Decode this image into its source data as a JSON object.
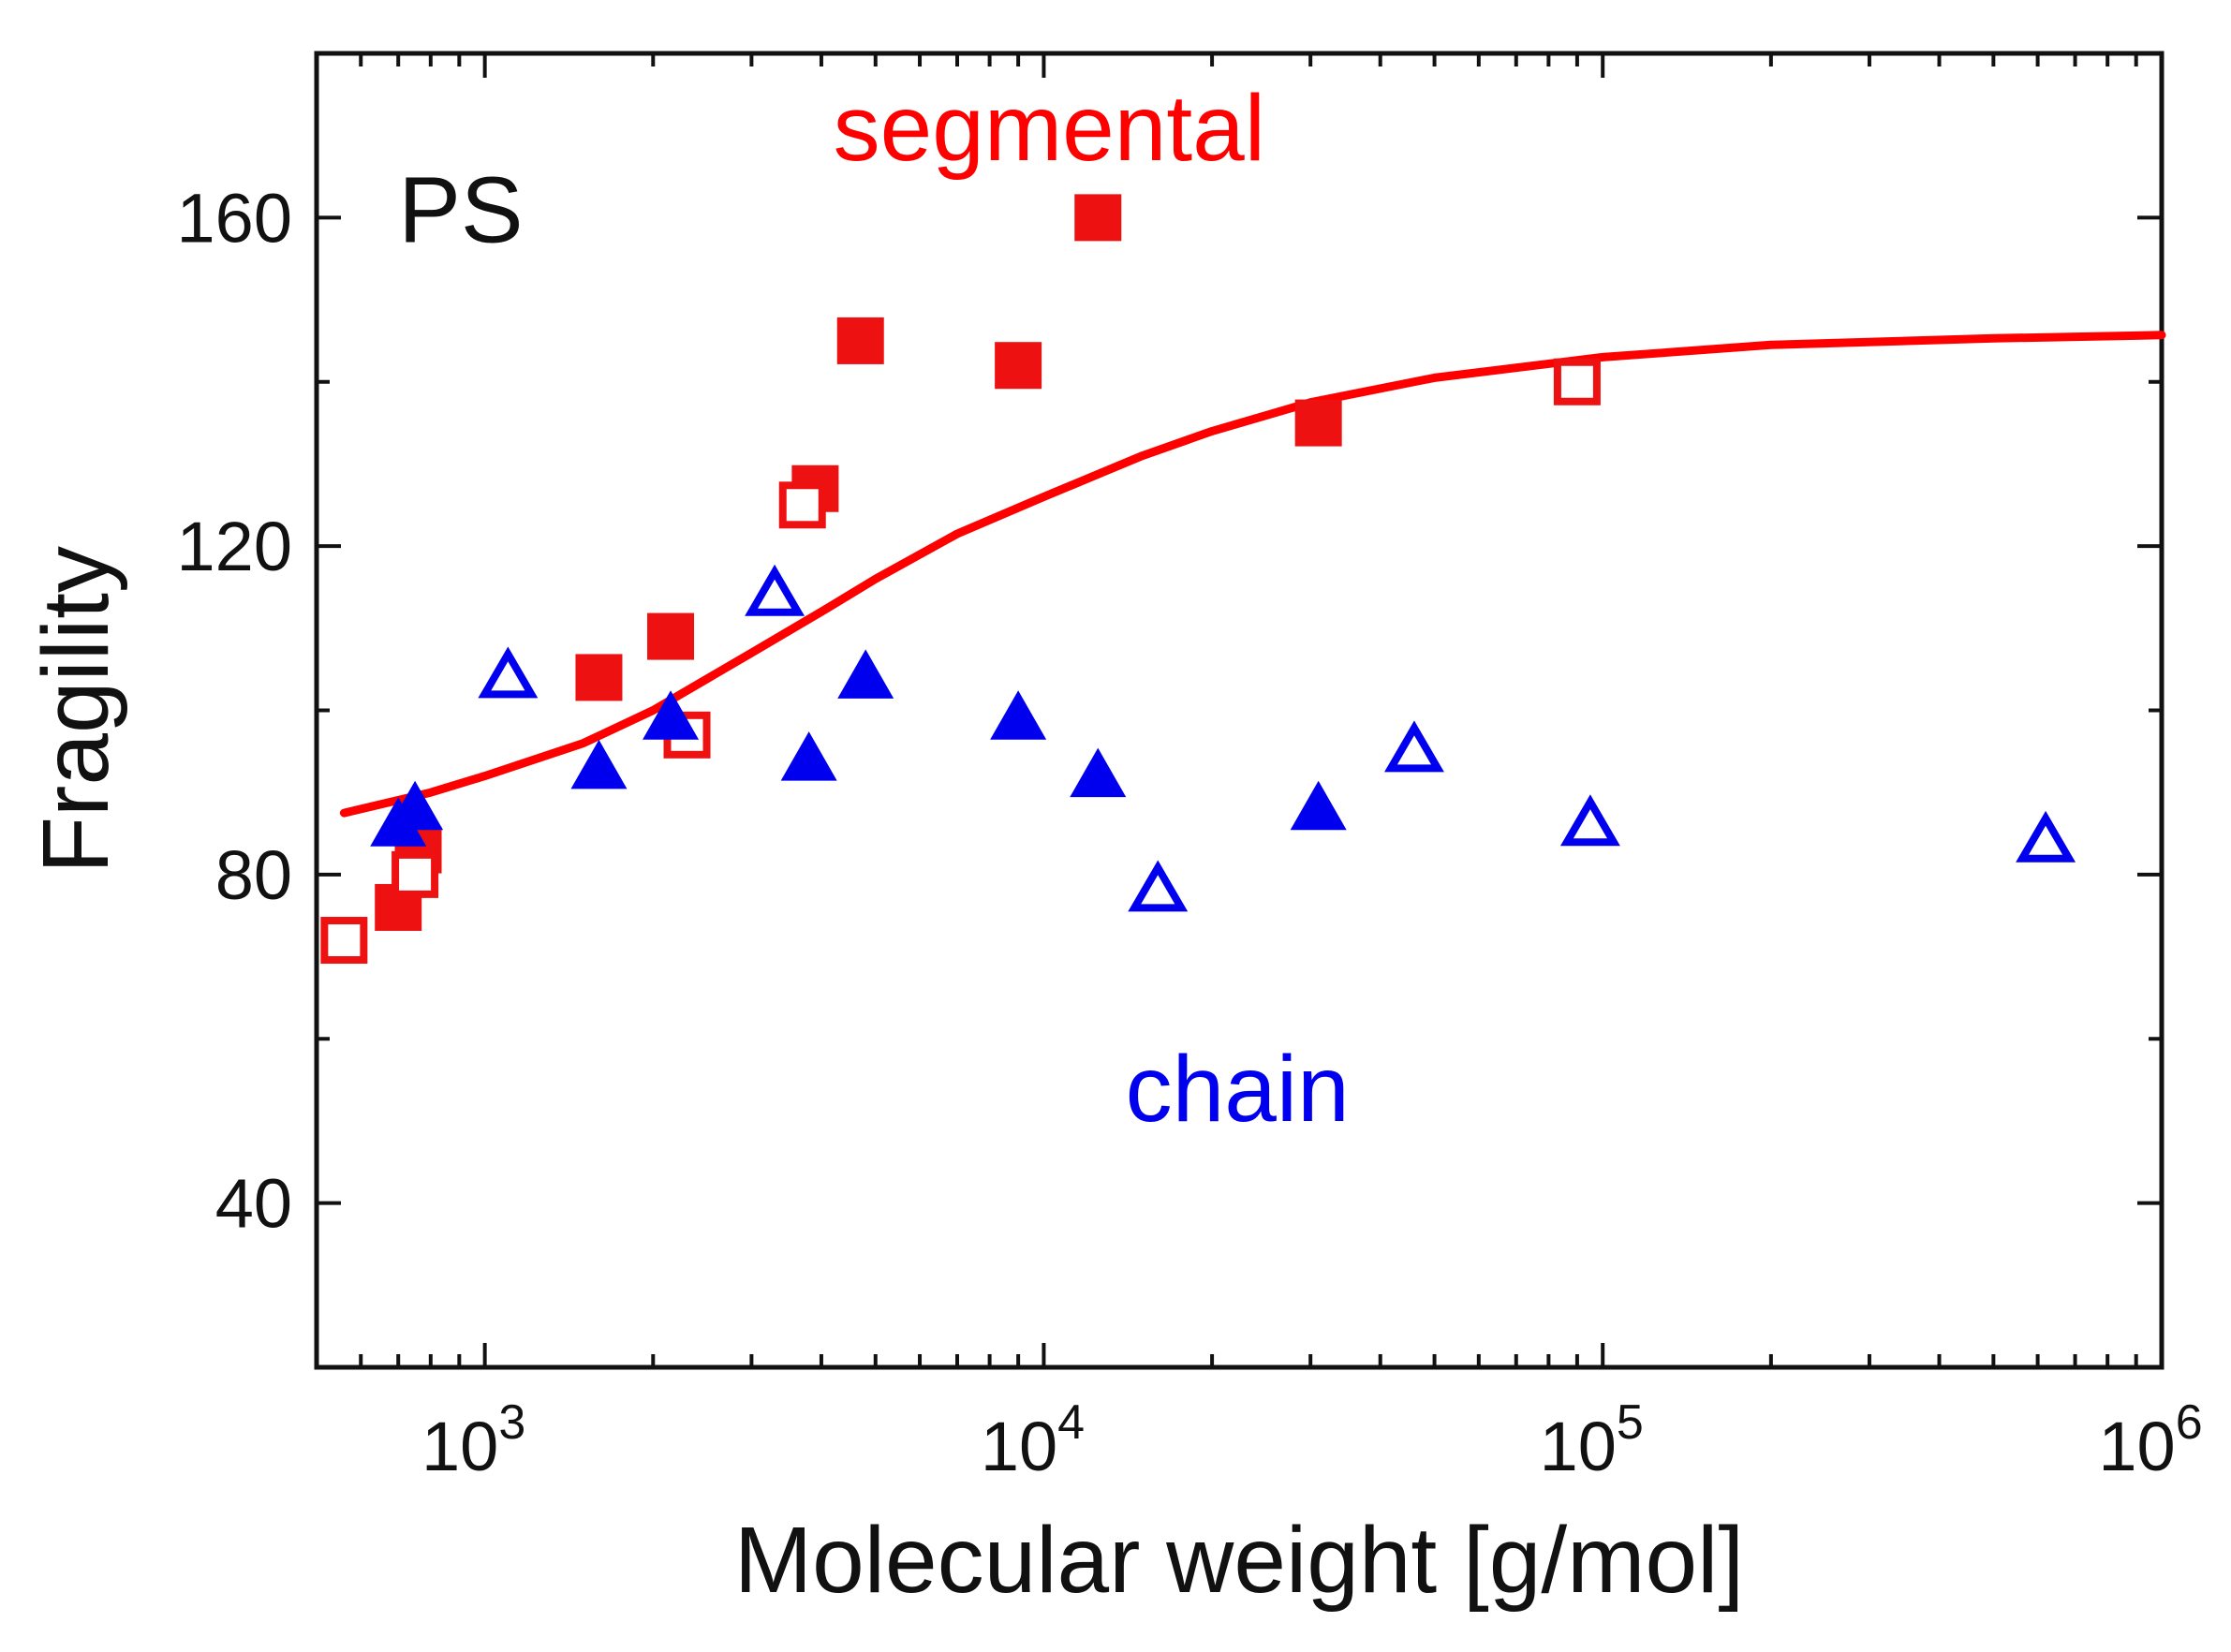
{
  "chart_data": {
    "type": "scatter",
    "title": "",
    "xlabel": "Molecular weight [g/mol]",
    "ylabel": "Fragility",
    "xscale": "log",
    "xlim": [
      500,
      1000000
    ],
    "ylim": [
      20,
      180
    ],
    "xticks": [
      {
        "value": 1000,
        "base": "10",
        "exp": "3"
      },
      {
        "value": 10000,
        "base": "10",
        "exp": "4"
      },
      {
        "value": 100000,
        "base": "10",
        "exp": "5"
      },
      {
        "value": 1000000,
        "base": "10",
        "exp": "6"
      }
    ],
    "yticks": [
      40,
      80,
      120,
      160
    ],
    "yminor": [
      60,
      100,
      140
    ],
    "grid": false,
    "annotations": [
      {
        "text": "PS",
        "x": 700,
        "y": 157,
        "color": "#111111"
      },
      {
        "text": "segmental",
        "x": 4200,
        "y": 167,
        "color": "#ff0000"
      },
      {
        "text": "chain",
        "x": 14000,
        "y": 50,
        "color": "#0000ee"
      }
    ],
    "series": [
      {
        "name": "segmental (filled)",
        "marker": "square",
        "filled": true,
        "color": "#ee1111",
        "points": [
          [
            700,
            76
          ],
          [
            760,
            83
          ],
          [
            1600,
            104
          ],
          [
            2150,
            109
          ],
          [
            3900,
            127
          ],
          [
            4700,
            145
          ],
          [
            9000,
            142
          ],
          [
            12500,
            160
          ],
          [
            31000,
            135
          ]
        ]
      },
      {
        "name": "segmental (open)",
        "marker": "square",
        "filled": false,
        "color": "#ee1111",
        "points": [
          [
            560,
            72
          ],
          [
            750,
            80
          ],
          [
            2300,
            97
          ],
          [
            3700,
            125
          ],
          [
            90000,
            140
          ]
        ]
      },
      {
        "name": "chain (filled)",
        "marker": "triangle",
        "filled": true,
        "color": "#0000ee",
        "points": [
          [
            700,
            86
          ],
          [
            750,
            88
          ],
          [
            1600,
            93
          ],
          [
            2150,
            99
          ],
          [
            3800,
            94
          ],
          [
            4800,
            104
          ],
          [
            9000,
            99
          ],
          [
            12500,
            92
          ],
          [
            31000,
            88
          ]
        ]
      },
      {
        "name": "chain (open)",
        "marker": "triangle",
        "filled": false,
        "color": "#0000ee",
        "points": [
          [
            1100,
            104
          ],
          [
            3300,
            114
          ],
          [
            16000,
            78
          ],
          [
            46000,
            95
          ],
          [
            95000,
            86
          ],
          [
            620000,
            84
          ]
        ]
      },
      {
        "name": "fit",
        "type": "line",
        "color": "#ff0000",
        "points": [
          [
            560,
            87.5
          ],
          [
            800,
            90
          ],
          [
            1000,
            92
          ],
          [
            1500,
            96
          ],
          [
            2000,
            100
          ],
          [
            3000,
            107
          ],
          [
            4000,
            112
          ],
          [
            5000,
            116
          ],
          [
            7000,
            121.5
          ],
          [
            10000,
            126
          ],
          [
            15000,
            131
          ],
          [
            20000,
            134
          ],
          [
            30000,
            137.5
          ],
          [
            50000,
            140.5
          ],
          [
            100000,
            143
          ],
          [
            200000,
            144.5
          ],
          [
            500000,
            145.3
          ],
          [
            1000000,
            145.7
          ]
        ]
      }
    ]
  }
}
